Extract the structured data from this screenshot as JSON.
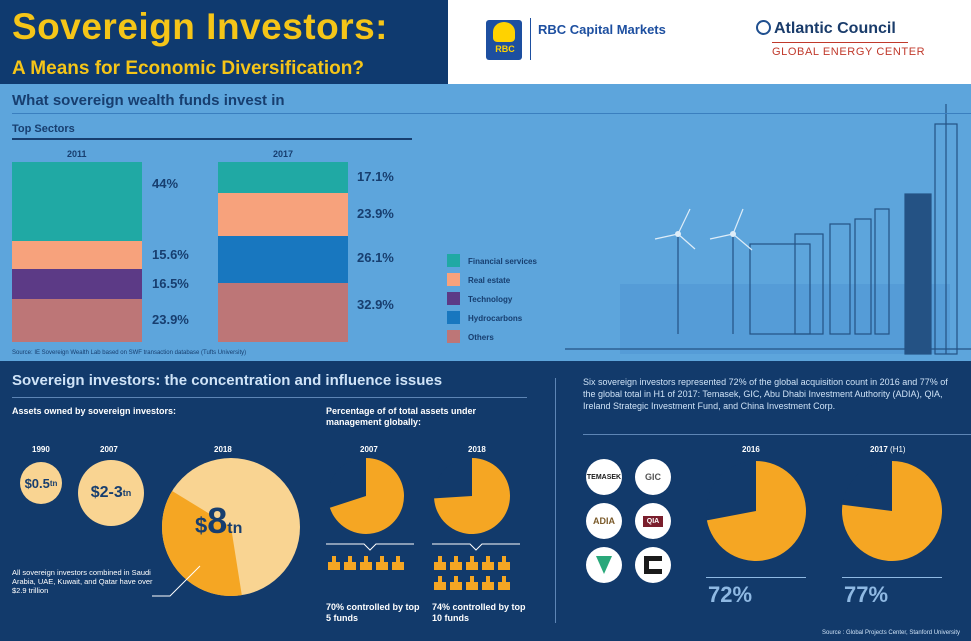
{
  "header": {
    "title": "Sovereign Investors:",
    "subtitle": "A Means for Economic Diversification?",
    "rbc_badge": "RBC",
    "rbc_name": "RBC Capital Markets",
    "ac_name": "Atlantic Council",
    "ac_sub": "GLOBAL ENERGY CENTER"
  },
  "section1": {
    "title": "What sovereign wealth funds invest in",
    "top_sectors": "Top Sectors",
    "source": "Source: IE Sovereign Wealth Lab based on SWF transaction database (Tufts University)"
  },
  "chart_data": [
    {
      "type": "bar",
      "title": "Top Sectors",
      "stacked": true,
      "categories": [
        "2011",
        "2017"
      ],
      "series": [
        {
          "name": "Financial services",
          "color": "#20a9a4",
          "values": [
            44,
            17.1
          ],
          "labels": [
            "44%",
            "17.1%"
          ]
        },
        {
          "name": "Real estate",
          "color": "#f7a27c",
          "values": [
            15.6,
            23.9
          ],
          "labels": [
            "15.6%",
            "23.9%"
          ]
        },
        {
          "name": "Technology",
          "color": "#5c3a86",
          "values": [
            16.5,
            0
          ],
          "labels": [
            "16.5%",
            ""
          ]
        },
        {
          "name": "Hydrocarbons",
          "color": "#1877bf",
          "values": [
            0,
            26.1
          ],
          "labels": [
            "",
            "26.1%"
          ]
        },
        {
          "name": "Others",
          "color": "#bd7677",
          "values": [
            23.9,
            32.9
          ],
          "labels": [
            "23.9%",
            "32.9%"
          ]
        }
      ]
    },
    {
      "type": "scatter",
      "title": "Assets owned by sovereign investors:",
      "x": [
        "1990",
        "2007",
        "2018"
      ],
      "values": [
        0.5,
        2.5,
        8
      ],
      "labels": [
        "$0.5tn",
        "$2-3tn",
        "$8tn"
      ]
    },
    {
      "type": "pie",
      "title": "Percentage of of total assets under management globally:",
      "categories": [
        "2007",
        "2018"
      ],
      "values": [
        70,
        74
      ],
      "captions": [
        "70% controlled by top 5 funds",
        "74% controlled by top 10 funds"
      ]
    },
    {
      "type": "pie",
      "categories": [
        "2016",
        "2017 (H1)"
      ],
      "values": [
        72,
        77
      ],
      "labels": [
        "72%",
        "77%"
      ]
    }
  ],
  "section2": {
    "title": "Sovereign investors: the concentration and influence issues",
    "assets_heading": "Assets owned by sovereign investors:",
    "years": [
      "1990",
      "2007",
      "2018"
    ],
    "bubbles": [
      {
        "sym": "$",
        "num": "0.5",
        "unit": "tn"
      },
      {
        "sym": "$",
        "num": "2-3",
        "unit": "tn"
      },
      {
        "sym": "$",
        "num": "8",
        "unit": "tn"
      }
    ],
    "note": "All sovereign investors combined in Saudi Arabia, UAE, Kuwait, and Qatar have over $2.9 trillion",
    "pct_heading": "Percentage of of total assets under management globally:",
    "pct_years": [
      "2007",
      "2018"
    ],
    "ctrl_2007": "70% controlled by top 5 funds",
    "ctrl_2018": "74% controlled by top 10 funds",
    "right_text": "Six sovereign investors represented 72% of the global acquisition count in 2016 and 77% of the global total in H1 of 2017: Temasek, GIC, Abu Dhabi Investment Authority (ADIA), QIA, Ireland Strategic Investment Fund, and China Investment Corp.",
    "right_years": [
      "2016",
      "2017"
    ],
    "right_years_h1": "(H1)",
    "right_pcts": [
      "72%",
      "77%"
    ],
    "logos": [
      "TEMASEK",
      "GIC",
      "ADIA",
      "QIA"
    ],
    "source": "Source : Global Projects Center, Stanford University"
  }
}
